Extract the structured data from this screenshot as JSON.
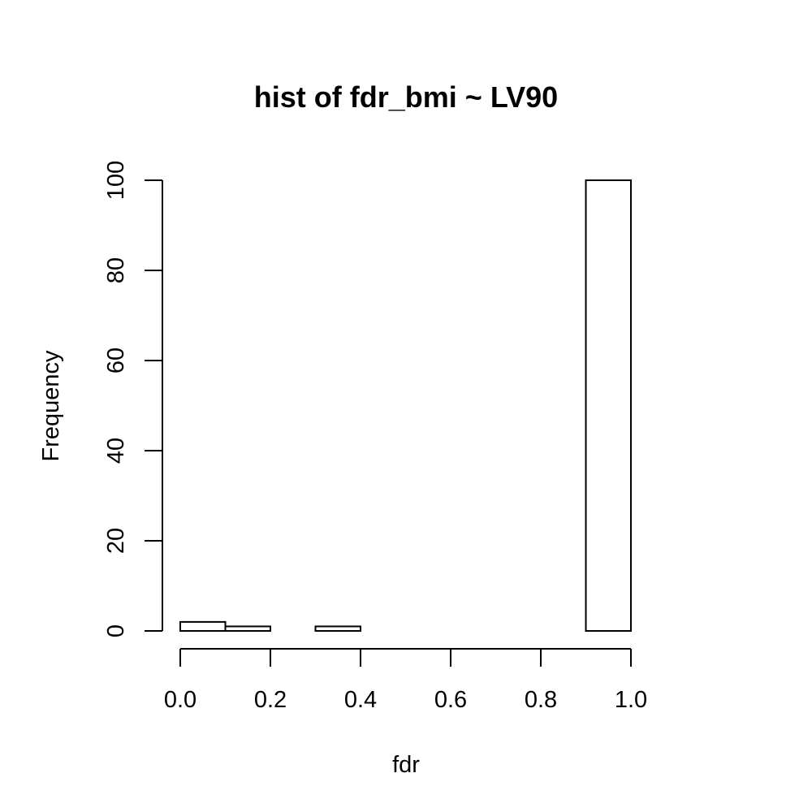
{
  "chart_data": {
    "type": "bar",
    "title": "hist of fdr_bmi ~ LV90",
    "xlabel": "fdr",
    "ylabel": "Frequency",
    "bins": [
      {
        "start": 0.0,
        "end": 0.1,
        "count": 2
      },
      {
        "start": 0.1,
        "end": 0.2,
        "count": 1
      },
      {
        "start": 0.2,
        "end": 0.3,
        "count": 0
      },
      {
        "start": 0.3,
        "end": 0.4,
        "count": 1
      },
      {
        "start": 0.4,
        "end": 0.5,
        "count": 0
      },
      {
        "start": 0.5,
        "end": 0.6,
        "count": 0
      },
      {
        "start": 0.6,
        "end": 0.7,
        "count": 0
      },
      {
        "start": 0.7,
        "end": 0.8,
        "count": 0
      },
      {
        "start": 0.8,
        "end": 0.9,
        "count": 0
      },
      {
        "start": 0.9,
        "end": 1.0,
        "count": 100
      }
    ],
    "x_ticks": [
      "0.0",
      "0.2",
      "0.4",
      "0.6",
      "0.8",
      "1.0"
    ],
    "y_ticks": [
      "0",
      "20",
      "40",
      "60",
      "80",
      "100"
    ],
    "xlim": [
      0,
      1
    ],
    "ylim": [
      0,
      100
    ],
    "grid": false,
    "legend": "none"
  }
}
